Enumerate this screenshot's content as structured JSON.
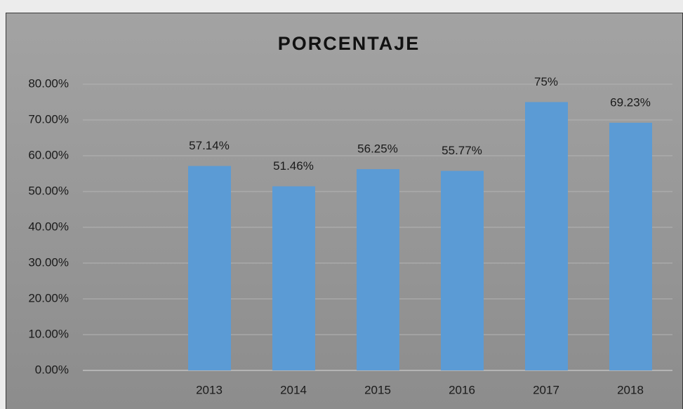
{
  "chart_data": {
    "type": "bar",
    "title": "PORCENTAJE",
    "categories": [
      null,
      "2013",
      "2014",
      "2015",
      "2016",
      "2017",
      "2018"
    ],
    "values": [
      null,
      57.14,
      51.46,
      56.25,
      55.77,
      75,
      69.23
    ],
    "value_labels": [
      null,
      "57.14%",
      "51.46%",
      "56.25%",
      "55.77%",
      "75%",
      "69.23%"
    ],
    "color": "#5b9bd5",
    "ylim": [
      0,
      80
    ],
    "yticks": [
      {
        "value": 0,
        "label": "0.00%"
      },
      {
        "value": 10,
        "label": "10.00%"
      },
      {
        "value": 20,
        "label": "20.00%"
      },
      {
        "value": 30,
        "label": "30.00%"
      },
      {
        "value": 40,
        "label": "40.00%"
      },
      {
        "value": 50,
        "label": "50.00%"
      },
      {
        "value": 60,
        "label": "60.00%"
      },
      {
        "value": 70,
        "label": "70.00%"
      },
      {
        "value": 80,
        "label": "80.00%"
      }
    ],
    "grid": true
  }
}
